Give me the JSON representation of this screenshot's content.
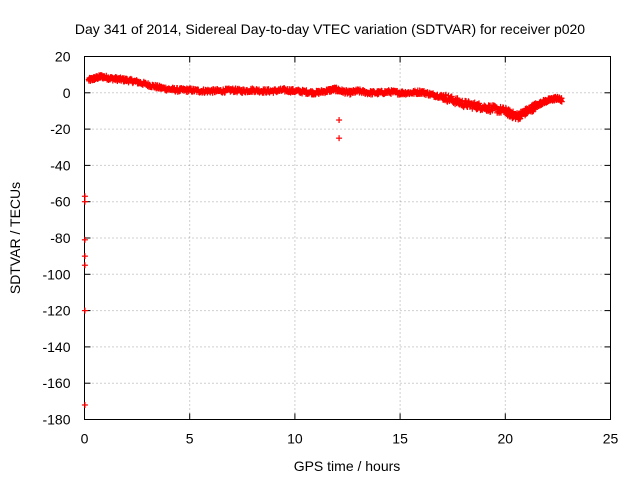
{
  "chart_data": {
    "type": "scatter",
    "title": "Day 341 of 2014, Sidereal Day-to-day VTEC variation (SDTVAR) for receiver p020",
    "xlabel": "GPS time / hours",
    "ylabel": "SDTVAR / TECUs",
    "xlim": [
      0,
      25
    ],
    "ylim": [
      -180,
      20
    ],
    "xticks": [
      0,
      5,
      10,
      15,
      20,
      25
    ],
    "yticks": [
      20,
      0,
      -20,
      -40,
      -60,
      -80,
      -100,
      -120,
      -140,
      -160,
      -180
    ],
    "grid": true,
    "marker": "+",
    "color": "#ff0000",
    "series": [
      {
        "name": "p020",
        "trend": [
          [
            0.2,
            7
          ],
          [
            0.5,
            8
          ],
          [
            0.8,
            9
          ],
          [
            1.2,
            8
          ],
          [
            1.6,
            7.5
          ],
          [
            2.0,
            7
          ],
          [
            2.5,
            6
          ],
          [
            3.0,
            4.5
          ],
          [
            3.5,
            3
          ],
          [
            4.0,
            2
          ],
          [
            4.5,
            1.5
          ],
          [
            5.0,
            1.5
          ],
          [
            5.5,
            1
          ],
          [
            6.0,
            1
          ],
          [
            6.5,
            1
          ],
          [
            7.0,
            1.5
          ],
          [
            7.5,
            1
          ],
          [
            8.0,
            1.5
          ],
          [
            8.5,
            1
          ],
          [
            9.0,
            1
          ],
          [
            9.5,
            1.5
          ],
          [
            10.0,
            1
          ],
          [
            10.5,
            0.5
          ],
          [
            11.0,
            0
          ],
          [
            11.5,
            1
          ],
          [
            11.9,
            2
          ],
          [
            12.2,
            1
          ],
          [
            12.6,
            0
          ],
          [
            13.0,
            1
          ],
          [
            13.5,
            0
          ],
          [
            14.0,
            0
          ],
          [
            14.5,
            0.5
          ],
          [
            15.0,
            0
          ],
          [
            15.5,
            0
          ],
          [
            16.0,
            0.5
          ],
          [
            16.5,
            -1
          ],
          [
            17.0,
            -2
          ],
          [
            17.5,
            -4
          ],
          [
            18.0,
            -6
          ],
          [
            18.5,
            -7
          ],
          [
            19.0,
            -8
          ],
          [
            19.5,
            -9
          ],
          [
            20.0,
            -10
          ],
          [
            20.3,
            -12
          ],
          [
            20.6,
            -13
          ],
          [
            20.9,
            -11
          ],
          [
            21.2,
            -9
          ],
          [
            21.5,
            -7
          ],
          [
            21.8,
            -5
          ],
          [
            22.1,
            -4
          ],
          [
            22.4,
            -3
          ],
          [
            22.7,
            -4
          ]
        ],
        "outliers": [
          [
            12.1,
            -15
          ],
          [
            12.1,
            -25
          ],
          [
            0.02,
            -57
          ],
          [
            0.02,
            -60
          ],
          [
            0.02,
            -81
          ],
          [
            0.02,
            -90
          ],
          [
            0.02,
            -95
          ],
          [
            0.02,
            -120
          ],
          [
            0.02,
            -172
          ]
        ]
      }
    ]
  }
}
